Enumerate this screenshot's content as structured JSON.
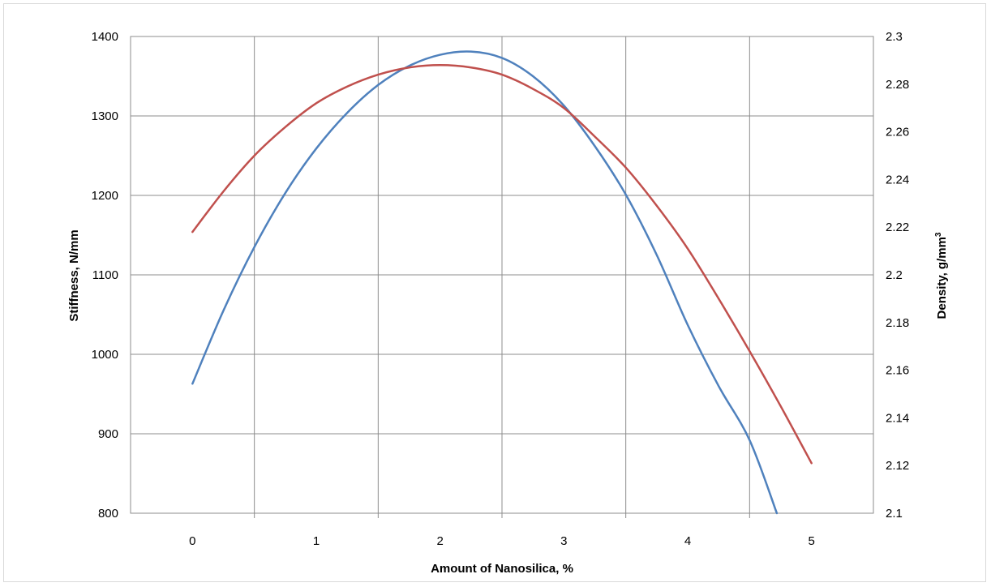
{
  "chart_data": {
    "type": "line",
    "xlabel": "Amount of Nanosilica, %",
    "ylabel_left": "Stiffness, N/mm",
    "ylabel_right_base": "Density, g/mm",
    "ylabel_right_sup": "3",
    "x_ticks": [
      "0",
      "1",
      "2",
      "3",
      "4",
      "5"
    ],
    "y_left_ticks": [
      "800",
      "900",
      "1000",
      "1100",
      "1200",
      "1300",
      "1400"
    ],
    "y_right_ticks": [
      "2.1",
      "2.12",
      "2.14",
      "2.16",
      "2.18",
      "2.2",
      "2.22",
      "2.24",
      "2.26",
      "2.28",
      "2.3"
    ],
    "xlim": [
      -0.5,
      5.5
    ],
    "ylim_left": [
      800,
      1400
    ],
    "ylim_right": [
      2.1,
      2.3
    ],
    "grid": true,
    "series": [
      {
        "axis": "left",
        "color": "#4f81bd",
        "x": [
          0,
          0.25,
          0.5,
          0.75,
          1,
          1.25,
          1.5,
          1.75,
          2,
          2.25,
          2.5,
          2.75,
          3,
          3.25,
          3.5,
          3.75,
          4,
          4.25,
          4.5,
          4.72
        ],
        "values": [
          963,
          1055,
          1135,
          1203,
          1259,
          1304,
          1339,
          1363,
          1377,
          1381,
          1373,
          1350,
          1313,
          1262,
          1201,
          1125,
          1037,
          960,
          892,
          800
        ]
      },
      {
        "axis": "right",
        "color": "#c0504d",
        "x": [
          0,
          0.25,
          0.5,
          0.75,
          1,
          1.25,
          1.5,
          1.75,
          2,
          2.25,
          2.5,
          2.75,
          3,
          3.25,
          3.5,
          3.75,
          4,
          4.25,
          4.5,
          4.75,
          5
        ],
        "values": [
          2.218,
          2.235,
          2.25,
          2.262,
          2.272,
          2.279,
          2.284,
          2.287,
          2.288,
          2.287,
          2.284,
          2.278,
          2.27,
          2.258,
          2.245,
          2.229,
          2.211,
          2.19,
          2.168,
          2.145,
          2.121
        ]
      }
    ]
  }
}
